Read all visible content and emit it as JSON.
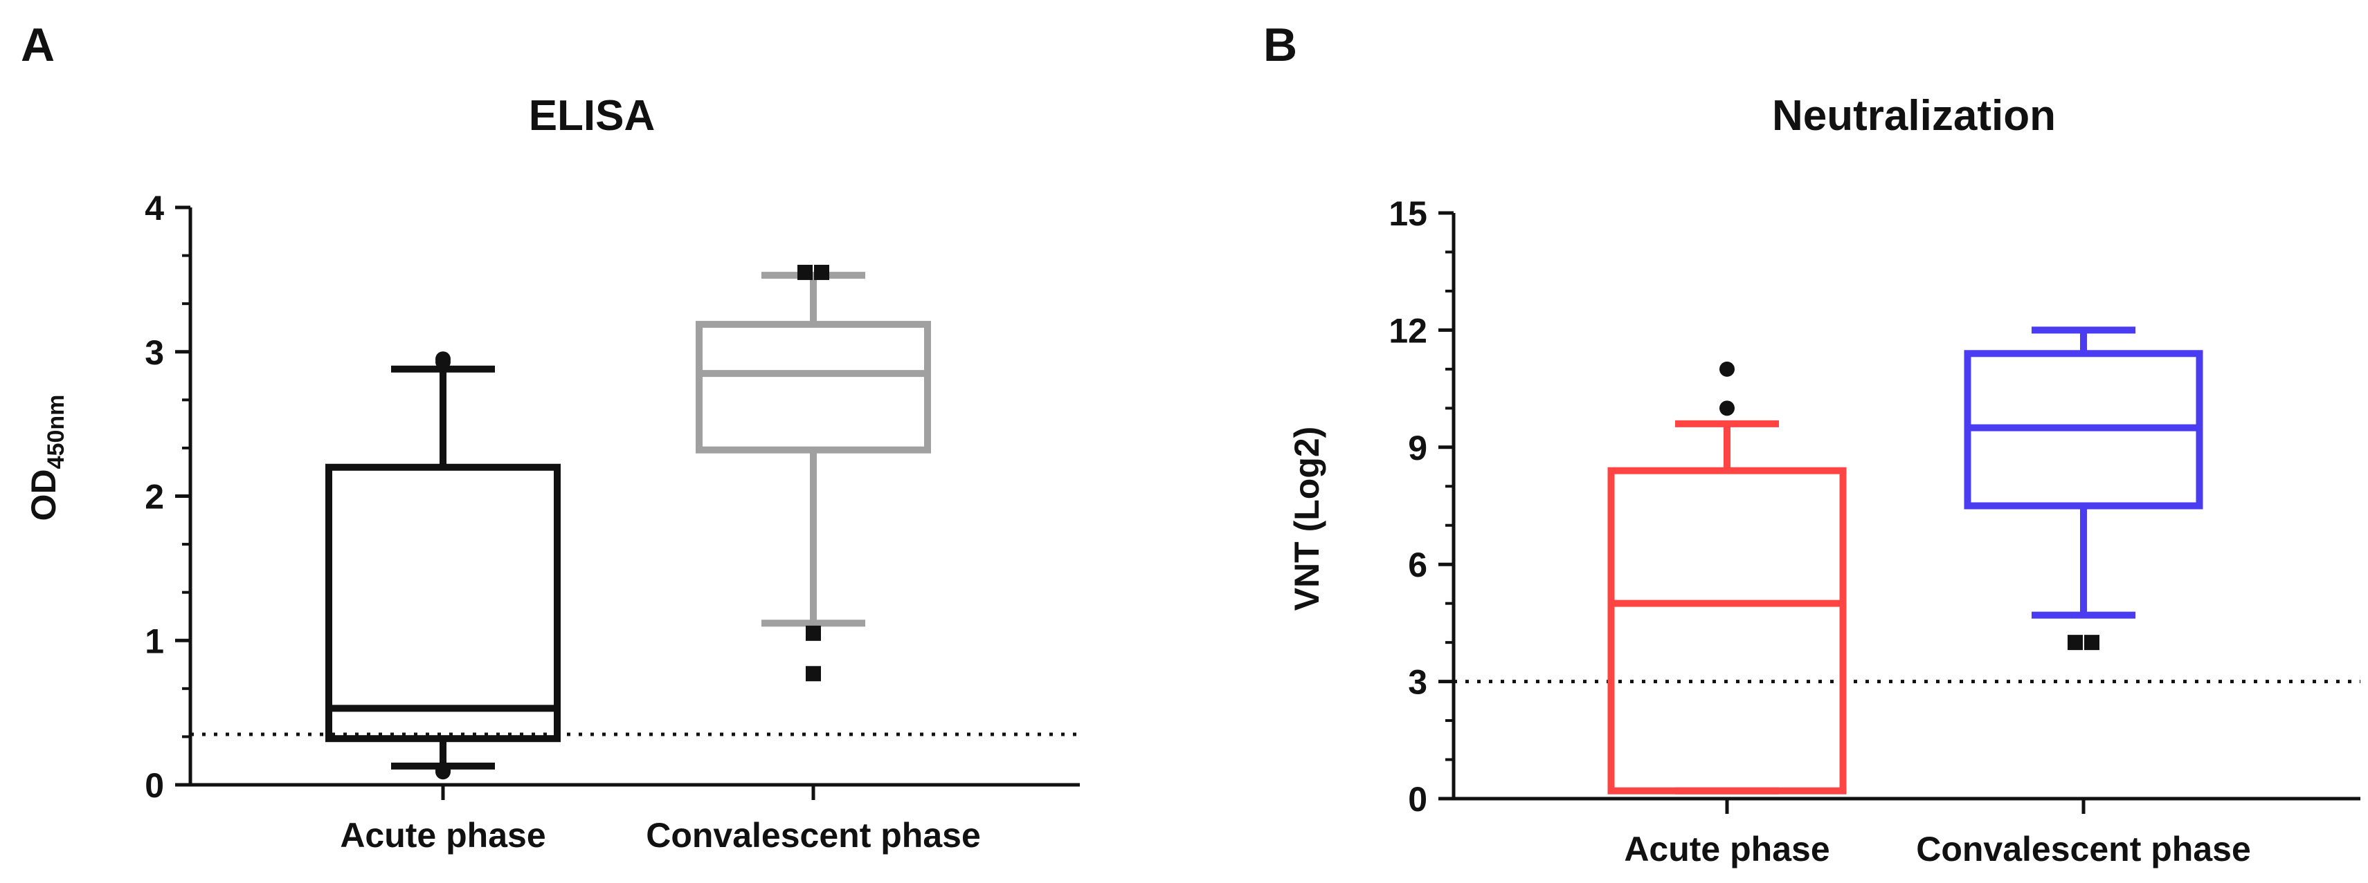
{
  "figure": {
    "panels": [
      {
        "letter": "A",
        "title": "ELISA"
      },
      {
        "letter": "B",
        "title": "Neutralization"
      }
    ]
  },
  "chart_data": [
    {
      "type": "box",
      "panel": "A",
      "title": "ELISA",
      "xlabel": "",
      "ylabel": "OD",
      "ylabel_subscript": "450nm",
      "ylim": [
        0,
        4
      ],
      "yticks": [
        0,
        1,
        2,
        3,
        4
      ],
      "grid": false,
      "categories": [
        "Acute phase",
        "Convalescent phase"
      ],
      "series": [
        {
          "name": "Acute phase",
          "color": "#111111",
          "whisker_low": 0.13,
          "q1": 0.32,
          "median": 0.53,
          "q3": 2.2,
          "whisker_high": 2.88,
          "outliers": [
            {
              "y": 2.95,
              "marker": "circle"
            },
            {
              "y": 2.93,
              "marker": "circle"
            },
            {
              "y": 0.1,
              "marker": "circle"
            },
            {
              "y": 0.09,
              "marker": "circle"
            }
          ]
        },
        {
          "name": "Convalescent phase",
          "color": "#a0a0a0",
          "whisker_low": 1.12,
          "q1": 2.32,
          "median": 2.85,
          "q3": 3.19,
          "whisker_high": 3.53,
          "outliers": [
            {
              "y": 3.55,
              "marker": "square"
            },
            {
              "y": 3.55,
              "marker": "square"
            },
            {
              "y": 1.05,
              "marker": "square"
            },
            {
              "y": 0.77,
              "marker": "square"
            }
          ]
        }
      ],
      "reference_line": {
        "y": 0.35,
        "style": "dotted"
      }
    },
    {
      "type": "box",
      "panel": "B",
      "title": "Neutralization",
      "xlabel": "",
      "ylabel": "VNT (Log2)",
      "ylim": [
        0,
        15
      ],
      "yticks": [
        0,
        3,
        6,
        9,
        12,
        15
      ],
      "grid": false,
      "categories": [
        "Acute phase",
        "Convalescent phase"
      ],
      "series": [
        {
          "name": "Acute phase",
          "color": "#ff4444",
          "whisker_low": 0.2,
          "q1": 0.2,
          "median": 5.0,
          "q3": 8.4,
          "whisker_high": 9.6,
          "outliers": [
            {
              "y": 11.0,
              "marker": "circle"
            },
            {
              "y": 10.0,
              "marker": "circle"
            }
          ]
        },
        {
          "name": "Convalescent phase",
          "color": "#4a3cf0",
          "whisker_low": 4.7,
          "q1": 7.5,
          "median": 9.5,
          "q3": 11.4,
          "whisker_high": 12.0,
          "outliers": [
            {
              "y": 4.0,
              "marker": "square"
            },
            {
              "y": 4.0,
              "marker": "square"
            }
          ]
        }
      ],
      "reference_line": {
        "y": 3.0,
        "style": "dotted"
      }
    }
  ]
}
